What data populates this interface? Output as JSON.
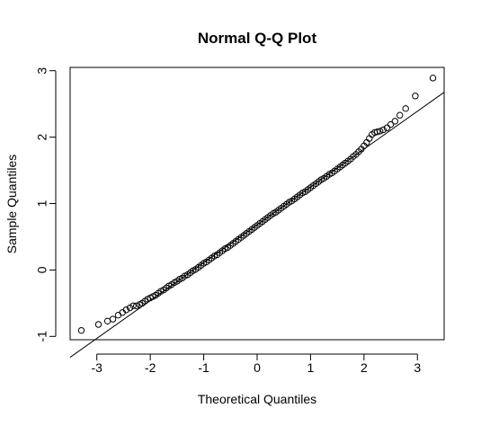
{
  "chart_data": {
    "type": "scatter",
    "title": "Normal Q-Q Plot",
    "xlabel": "Theoretical Quantiles",
    "ylabel": "Sample Quantiles",
    "xlim": [
      -3.5,
      3.5
    ],
    "ylim": [
      -1.05,
      3.05
    ],
    "xticks": [
      -3,
      -2,
      -1,
      0,
      1,
      2,
      3
    ],
    "yticks": [
      -1,
      0,
      1,
      2,
      3
    ],
    "xtick_labels": [
      "-3",
      "-2",
      "-1",
      "0",
      "1",
      "2",
      "3"
    ],
    "ytick_labels": [
      "-1",
      "0",
      "1",
      "2",
      "3"
    ],
    "grid": false,
    "reference_line": {
      "intercept": 0.68,
      "slope": 0.57
    },
    "point_style": "open-circle",
    "points": [
      [
        -3.29,
        -0.91
      ],
      [
        -2.97,
        -0.82
      ],
      [
        -2.8,
        -0.77
      ],
      [
        -2.7,
        -0.74
      ],
      [
        -2.6,
        -0.68
      ],
      [
        -2.52,
        -0.64
      ],
      [
        -2.45,
        -0.6
      ],
      [
        -2.38,
        -0.57
      ],
      [
        -2.32,
        -0.54
      ],
      [
        -2.26,
        -0.54
      ],
      [
        -2.2,
        -0.52
      ],
      [
        -2.15,
        -0.5
      ],
      [
        -2.1,
        -0.47
      ],
      [
        -2.05,
        -0.44
      ],
      [
        -2.0,
        -0.42
      ],
      [
        -1.95,
        -0.4
      ],
      [
        -1.9,
        -0.38
      ],
      [
        -1.85,
        -0.35
      ],
      [
        -1.8,
        -0.32
      ],
      [
        -1.75,
        -0.3
      ],
      [
        -1.7,
        -0.27
      ],
      [
        -1.65,
        -0.24
      ],
      [
        -1.6,
        -0.22
      ],
      [
        -1.55,
        -0.19
      ],
      [
        -1.5,
        -0.17
      ],
      [
        -1.45,
        -0.14
      ],
      [
        -1.4,
        -0.12
      ],
      [
        -1.35,
        -0.09
      ],
      [
        -1.3,
        -0.07
      ],
      [
        -1.25,
        -0.04
      ],
      [
        -1.2,
        -0.01
      ],
      [
        -1.15,
        0.01
      ],
      [
        -1.1,
        0.04
      ],
      [
        -1.05,
        0.07
      ],
      [
        -1.0,
        0.1
      ],
      [
        -0.95,
        0.12
      ],
      [
        -0.9,
        0.15
      ],
      [
        -0.85,
        0.18
      ],
      [
        -0.8,
        0.21
      ],
      [
        -0.75,
        0.23
      ],
      [
        -0.7,
        0.26
      ],
      [
        -0.65,
        0.29
      ],
      [
        -0.6,
        0.32
      ],
      [
        -0.55,
        0.34
      ],
      [
        -0.5,
        0.37
      ],
      [
        -0.45,
        0.4
      ],
      [
        -0.4,
        0.43
      ],
      [
        -0.35,
        0.46
      ],
      [
        -0.3,
        0.49
      ],
      [
        -0.25,
        0.52
      ],
      [
        -0.2,
        0.55
      ],
      [
        -0.15,
        0.58
      ],
      [
        -0.1,
        0.61
      ],
      [
        -0.05,
        0.64
      ],
      [
        0.0,
        0.67
      ],
      [
        0.05,
        0.7
      ],
      [
        0.1,
        0.73
      ],
      [
        0.15,
        0.76
      ],
      [
        0.2,
        0.79
      ],
      [
        0.25,
        0.82
      ],
      [
        0.3,
        0.85
      ],
      [
        0.35,
        0.87
      ],
      [
        0.4,
        0.9
      ],
      [
        0.45,
        0.93
      ],
      [
        0.5,
        0.96
      ],
      [
        0.55,
        0.99
      ],
      [
        0.6,
        1.02
      ],
      [
        0.65,
        1.04
      ],
      [
        0.7,
        1.07
      ],
      [
        0.75,
        1.1
      ],
      [
        0.8,
        1.13
      ],
      [
        0.85,
        1.16
      ],
      [
        0.9,
        1.18
      ],
      [
        0.95,
        1.21
      ],
      [
        1.0,
        1.24
      ],
      [
        1.05,
        1.27
      ],
      [
        1.1,
        1.3
      ],
      [
        1.15,
        1.33
      ],
      [
        1.2,
        1.36
      ],
      [
        1.25,
        1.38
      ],
      [
        1.3,
        1.41
      ],
      [
        1.35,
        1.44
      ],
      [
        1.4,
        1.46
      ],
      [
        1.45,
        1.49
      ],
      [
        1.5,
        1.52
      ],
      [
        1.55,
        1.55
      ],
      [
        1.6,
        1.58
      ],
      [
        1.65,
        1.61
      ],
      [
        1.7,
        1.64
      ],
      [
        1.75,
        1.67
      ],
      [
        1.8,
        1.71
      ],
      [
        1.85,
        1.74
      ],
      [
        1.9,
        1.78
      ],
      [
        1.95,
        1.82
      ],
      [
        2.0,
        1.87
      ],
      [
        2.05,
        1.92
      ],
      [
        2.1,
        1.98
      ],
      [
        2.15,
        2.04
      ],
      [
        2.2,
        2.07
      ],
      [
        2.25,
        2.08
      ],
      [
        2.3,
        2.09
      ],
      [
        2.36,
        2.11
      ],
      [
        2.43,
        2.14
      ],
      [
        2.5,
        2.19
      ],
      [
        2.58,
        2.24
      ],
      [
        2.67,
        2.33
      ],
      [
        2.78,
        2.43
      ],
      [
        2.96,
        2.62
      ],
      [
        3.29,
        2.89
      ]
    ]
  }
}
